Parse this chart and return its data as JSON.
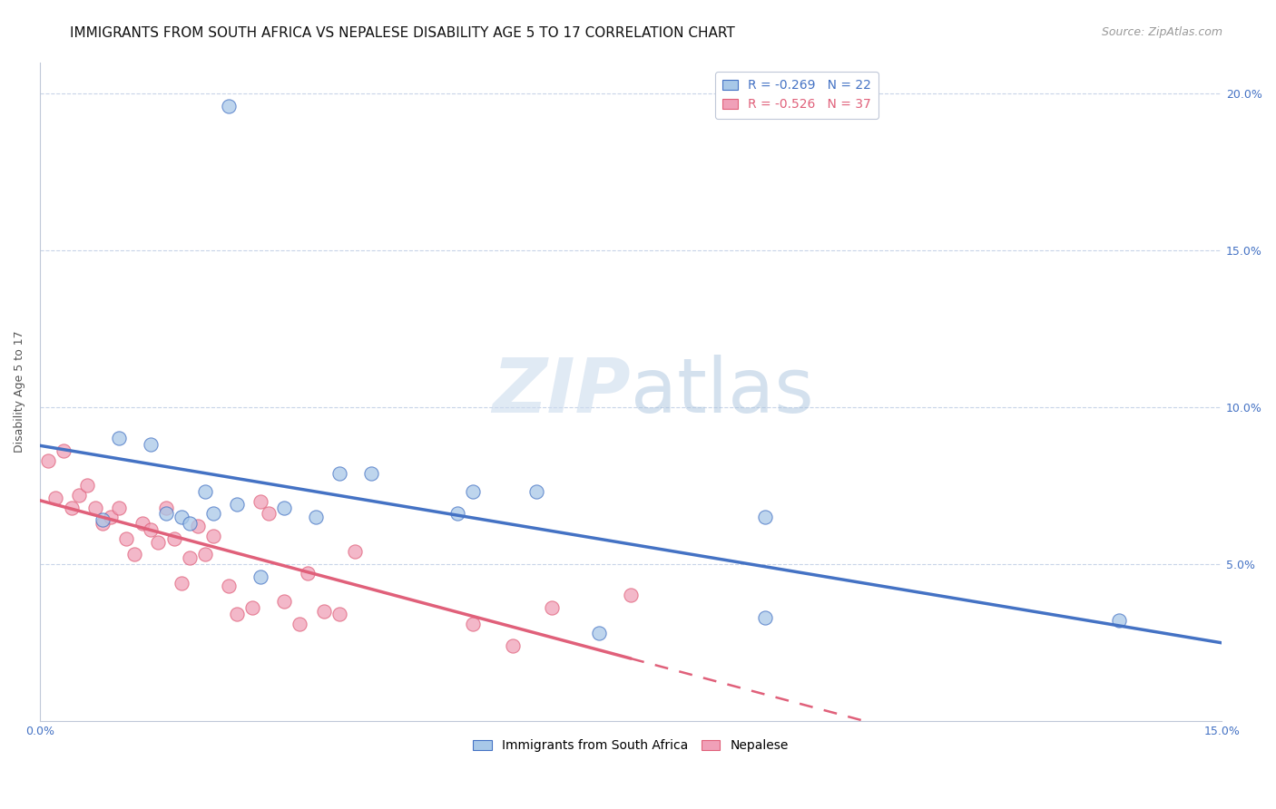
{
  "title": "IMMIGRANTS FROM SOUTH AFRICA VS NEPALESE DISABILITY AGE 5 TO 17 CORRELATION CHART",
  "source": "Source: ZipAtlas.com",
  "ylabel": "Disability Age 5 to 17",
  "xlim": [
    0.0,
    0.15
  ],
  "ylim": [
    0.0,
    0.21
  ],
  "yticks_right": [
    0.05,
    0.1,
    0.15,
    0.2
  ],
  "ytick_right_labels": [
    "5.0%",
    "10.0%",
    "15.0%",
    "20.0%"
  ],
  "blue_color": "#a8c8e8",
  "pink_color": "#f0a0b8",
  "blue_line_color": "#4472c4",
  "pink_line_color": "#e0607a",
  "legend_r_blue": "R = -0.269",
  "legend_n_blue": "N = 22",
  "legend_r_pink": "R = -0.526",
  "legend_n_pink": "N = 37",
  "title_fontsize": 11,
  "axis_label_fontsize": 9,
  "tick_fontsize": 9,
  "legend_fontsize": 10,
  "source_fontsize": 9,
  "marker_size": 120,
  "blue_x": [
    0.024,
    0.008,
    0.01,
    0.014,
    0.016,
    0.018,
    0.019,
    0.021,
    0.022,
    0.025,
    0.028,
    0.031,
    0.035,
    0.038,
    0.042,
    0.053,
    0.063,
    0.071,
    0.092,
    0.137,
    0.092,
    0.055
  ],
  "blue_y": [
    0.196,
    0.064,
    0.09,
    0.088,
    0.066,
    0.065,
    0.063,
    0.073,
    0.066,
    0.069,
    0.046,
    0.068,
    0.065,
    0.079,
    0.079,
    0.066,
    0.073,
    0.028,
    0.033,
    0.032,
    0.065,
    0.073
  ],
  "pink_x": [
    0.001,
    0.002,
    0.003,
    0.004,
    0.005,
    0.006,
    0.007,
    0.008,
    0.009,
    0.01,
    0.011,
    0.012,
    0.013,
    0.014,
    0.015,
    0.016,
    0.017,
    0.018,
    0.019,
    0.02,
    0.021,
    0.022,
    0.024,
    0.025,
    0.027,
    0.028,
    0.029,
    0.031,
    0.033,
    0.034,
    0.036,
    0.038,
    0.04,
    0.055,
    0.06,
    0.065,
    0.075
  ],
  "pink_y": [
    0.083,
    0.071,
    0.086,
    0.068,
    0.072,
    0.075,
    0.068,
    0.063,
    0.065,
    0.068,
    0.058,
    0.053,
    0.063,
    0.061,
    0.057,
    0.068,
    0.058,
    0.044,
    0.052,
    0.062,
    0.053,
    0.059,
    0.043,
    0.034,
    0.036,
    0.07,
    0.066,
    0.038,
    0.031,
    0.047,
    0.035,
    0.034,
    0.054,
    0.031,
    0.024,
    0.036,
    0.04
  ],
  "blue_intercept": 0.072,
  "blue_slope": -0.26,
  "pink_intercept": 0.065,
  "pink_slope": -0.52
}
